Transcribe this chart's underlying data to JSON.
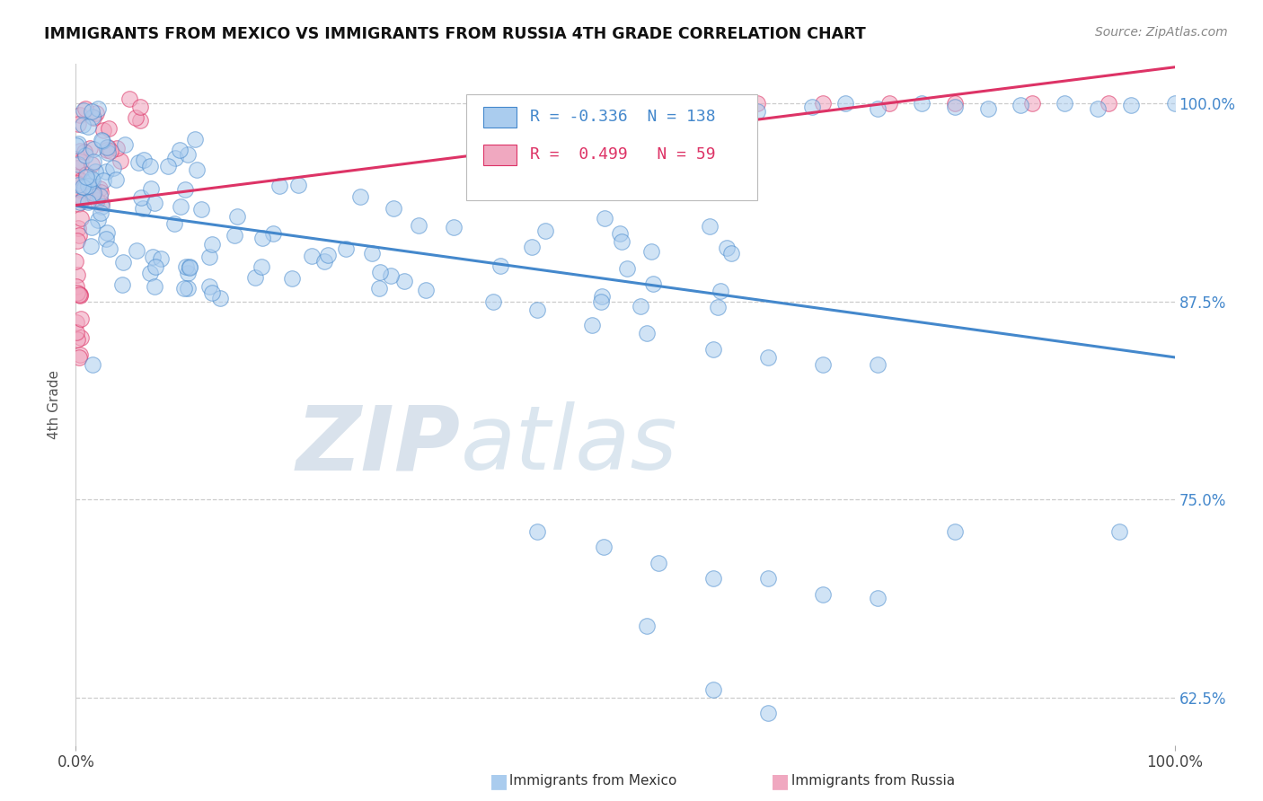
{
  "title": "IMMIGRANTS FROM MEXICO VS IMMIGRANTS FROM RUSSIA 4TH GRADE CORRELATION CHART",
  "source": "Source: ZipAtlas.com",
  "ylabel": "4th Grade",
  "ytick_labels": [
    "62.5%",
    "75.0%",
    "87.5%",
    "100.0%"
  ],
  "ytick_values": [
    0.625,
    0.75,
    0.875,
    1.0
  ],
  "xmin": 0.0,
  "xmax": 1.0,
  "ymin": 0.595,
  "ymax": 1.025,
  "R_mexico": -0.336,
  "N_mexico": 138,
  "R_russia": 0.499,
  "N_russia": 59,
  "color_mexico": "#aaccee",
  "color_russia": "#f0a8c0",
  "line_color_mexico": "#4488cc",
  "line_color_russia": "#dd3366",
  "watermark_zip_color": "#c0d0e0",
  "watermark_atlas_color": "#b0c8dd"
}
